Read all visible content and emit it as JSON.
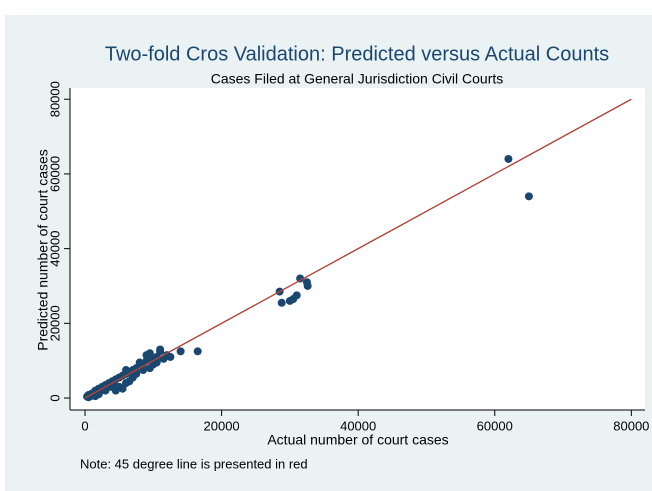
{
  "chart_data": {
    "type": "scatter",
    "title": "Two-fold Cros Validation: Predicted versus Actual Counts",
    "subtitle": "Cases Filed at General Jurisdiction Civil Courts",
    "x_label": "Actual number of court cases",
    "y_label": "Predicted number of court cases",
    "note": "Note: 45 degree line is presented in red",
    "xlim": [
      -2200,
      82000
    ],
    "ylim": [
      -3200,
      83000
    ],
    "xticks": [
      0,
      20000,
      40000,
      60000,
      80000
    ],
    "yticks": [
      0,
      20000,
      40000,
      60000,
      80000
    ],
    "color": "#1a476f",
    "x": [
      62000,
      65000,
      28500,
      28800,
      30500,
      31000,
      31500,
      32500,
      32600,
      30000,
      16500,
      14000,
      12000,
      11000,
      10500,
      9500,
      9000,
      8500,
      8000,
      7500,
      7000,
      6500,
      6000,
      5500,
      5000,
      4500,
      4000,
      3500,
      3000,
      2500,
      2000,
      1500,
      1000,
      500,
      300,
      800,
      1200,
      1800,
      2200,
      2800,
      3200,
      3800,
      4200,
      5000,
      5500,
      6000,
      6500,
      7000,
      7500,
      8500,
      9500,
      10000,
      10500,
      11500,
      12500,
      2000,
      4500,
      6000,
      8000,
      9000,
      10000,
      11000,
      3000,
      1500,
      500
    ],
    "values": [
      64000,
      54000,
      28500,
      25500,
      26500,
      27500,
      32000,
      31000,
      30000,
      26000,
      12500,
      12500,
      11500,
      12500,
      11000,
      12000,
      10000,
      9000,
      8500,
      8000,
      7500,
      7000,
      6500,
      6000,
      5500,
      5000,
      4500,
      4000,
      3500,
      3000,
      2500,
      2000,
      1200,
      800,
      400,
      500,
      1000,
      1500,
      1800,
      2500,
      2800,
      3000,
      3500,
      3000,
      2500,
      4000,
      4500,
      5500,
      6500,
      7500,
      8000,
      9000,
      9500,
      10500,
      11000,
      1000,
      2000,
      7500,
      9500,
      11500,
      10500,
      13000,
      2000,
      500,
      200
    ],
    "reference_line": {
      "x": [
        0,
        80000
      ],
      "y": [
        0,
        80000
      ],
      "color": "#b0453a"
    }
  }
}
